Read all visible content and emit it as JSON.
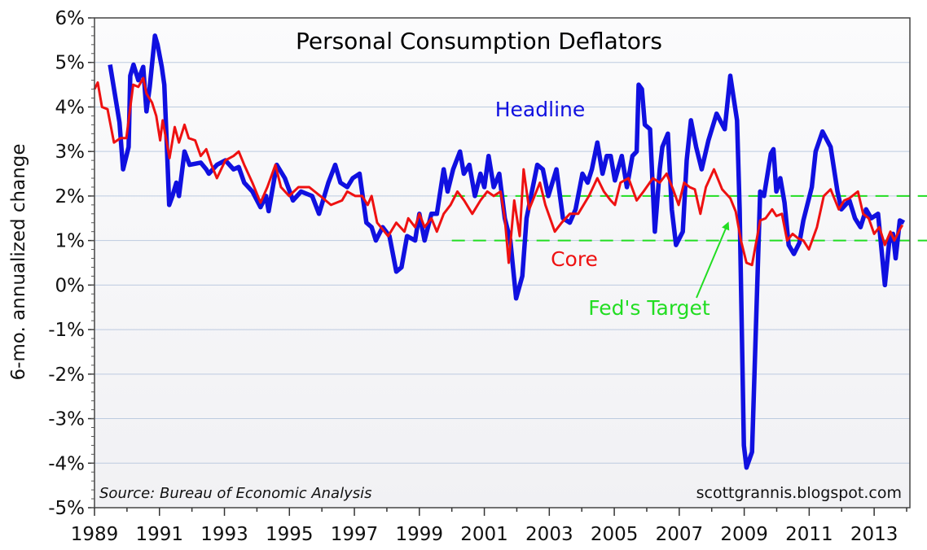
{
  "chart_data": {
    "type": "line",
    "title": "Personal Consumption Deflators",
    "xlabel": "",
    "ylabel": "6-mo. annualized change",
    "xlim": [
      1989,
      2014.1
    ],
    "ylim": [
      -5,
      6
    ],
    "grid": true,
    "x_ticks": [
      "1989",
      "1991",
      "1993",
      "1995",
      "1997",
      "1999",
      "2001",
      "2003",
      "2005",
      "2007",
      "2009",
      "2011",
      "2013"
    ],
    "y_ticks": [
      "6%",
      "5%",
      "4%",
      "3%",
      "2%",
      "1%",
      "0%",
      "-1%",
      "-2%",
      "-3%",
      "-4%",
      "-5%"
    ],
    "source": "Source:  Bureau of Economic Analysis",
    "credit": "scottgrannis.blogspot.com",
    "colors": {
      "headline": "#1010e0",
      "core": "#ee1111",
      "target": "#22dd22",
      "grid": "#bccbe0"
    },
    "target_band": {
      "label": "Fed's Target",
      "low": 1,
      "high": 2,
      "start": 2000.0
    },
    "series": [
      {
        "name": "Headline",
        "points": [
          [
            1989.48,
            4.95
          ],
          [
            1989.77,
            3.65
          ],
          [
            1989.88,
            2.6
          ],
          [
            1990.05,
            3.1
          ],
          [
            1990.1,
            4.7
          ],
          [
            1990.2,
            4.95
          ],
          [
            1990.35,
            4.6
          ],
          [
            1990.5,
            4.9
          ],
          [
            1990.6,
            3.9
          ],
          [
            1990.7,
            4.45
          ],
          [
            1990.86,
            5.6
          ],
          [
            1990.94,
            5.4
          ],
          [
            1991.07,
            4.9
          ],
          [
            1991.15,
            4.5
          ],
          [
            1991.23,
            3.1
          ],
          [
            1991.3,
            1.8
          ],
          [
            1991.4,
            2.0
          ],
          [
            1991.52,
            2.3
          ],
          [
            1991.6,
            2.0
          ],
          [
            1991.77,
            3.0
          ],
          [
            1991.93,
            2.7
          ],
          [
            1992.27,
            2.75
          ],
          [
            1992.44,
            2.6
          ],
          [
            1992.52,
            2.5
          ],
          [
            1992.77,
            2.7
          ],
          [
            1993.03,
            2.8
          ],
          [
            1993.28,
            2.6
          ],
          [
            1993.44,
            2.65
          ],
          [
            1993.61,
            2.3
          ],
          [
            1993.86,
            2.1
          ],
          [
            1994.11,
            1.75
          ],
          [
            1994.28,
            2.0
          ],
          [
            1994.36,
            1.66
          ],
          [
            1994.61,
            2.7
          ],
          [
            1994.86,
            2.4
          ],
          [
            1995.11,
            1.9
          ],
          [
            1995.36,
            2.1
          ],
          [
            1995.7,
            2.0
          ],
          [
            1995.91,
            1.6
          ],
          [
            1996.2,
            2.3
          ],
          [
            1996.41,
            2.7
          ],
          [
            1996.57,
            2.3
          ],
          [
            1996.78,
            2.2
          ],
          [
            1996.95,
            2.4
          ],
          [
            1997.16,
            2.5
          ],
          [
            1997.37,
            1.4
          ],
          [
            1997.53,
            1.3
          ],
          [
            1997.66,
            1.0
          ],
          [
            1997.87,
            1.3
          ],
          [
            1998.08,
            1.1
          ],
          [
            1998.29,
            0.3
          ],
          [
            1998.45,
            0.4
          ],
          [
            1998.62,
            1.1
          ],
          [
            1998.87,
            1.0
          ],
          [
            1999.0,
            1.6
          ],
          [
            1999.16,
            1.0
          ],
          [
            1999.37,
            1.6
          ],
          [
            1999.54,
            1.6
          ],
          [
            1999.75,
            2.6
          ],
          [
            1999.87,
            2.1
          ],
          [
            2000.04,
            2.6
          ],
          [
            2000.25,
            3.0
          ],
          [
            2000.37,
            2.5
          ],
          [
            2000.54,
            2.7
          ],
          [
            2000.71,
            2.0
          ],
          [
            2000.88,
            2.5
          ],
          [
            2001.0,
            2.2
          ],
          [
            2001.13,
            2.9
          ],
          [
            2001.29,
            2.2
          ],
          [
            2001.46,
            2.5
          ],
          [
            2001.63,
            1.5
          ],
          [
            2001.8,
            1.0
          ],
          [
            2001.98,
            -0.3
          ],
          [
            2002.17,
            0.2
          ],
          [
            2002.3,
            1.5
          ],
          [
            2002.63,
            2.7
          ],
          [
            2002.8,
            2.6
          ],
          [
            2002.97,
            2.0
          ],
          [
            2003.22,
            2.6
          ],
          [
            2003.42,
            1.5
          ],
          [
            2003.63,
            1.4
          ],
          [
            2003.81,
            1.7
          ],
          [
            2004.02,
            2.5
          ],
          [
            2004.18,
            2.3
          ],
          [
            2004.31,
            2.6
          ],
          [
            2004.48,
            3.2
          ],
          [
            2004.64,
            2.5
          ],
          [
            2004.77,
            2.9
          ],
          [
            2004.89,
            2.9
          ],
          [
            2005.02,
            2.35
          ],
          [
            2005.23,
            2.9
          ],
          [
            2005.39,
            2.2
          ],
          [
            2005.56,
            2.9
          ],
          [
            2005.69,
            3.0
          ],
          [
            2005.75,
            4.5
          ],
          [
            2005.85,
            4.4
          ],
          [
            2005.94,
            3.6
          ],
          [
            2006.1,
            3.5
          ],
          [
            2006.25,
            1.2
          ],
          [
            2006.4,
            2.6
          ],
          [
            2006.48,
            3.1
          ],
          [
            2006.65,
            3.4
          ],
          [
            2006.77,
            1.7
          ],
          [
            2006.9,
            0.9
          ],
          [
            2007.11,
            1.2
          ],
          [
            2007.23,
            2.8
          ],
          [
            2007.36,
            3.7
          ],
          [
            2007.52,
            3.1
          ],
          [
            2007.69,
            2.6
          ],
          [
            2007.9,
            3.25
          ],
          [
            2008.15,
            3.85
          ],
          [
            2008.4,
            3.5
          ],
          [
            2008.57,
            4.7
          ],
          [
            2008.78,
            3.7
          ],
          [
            2008.86,
            1.7
          ],
          [
            2008.99,
            -3.6
          ],
          [
            2009.07,
            -4.1
          ],
          [
            2009.24,
            -3.75
          ],
          [
            2009.49,
            2.1
          ],
          [
            2009.61,
            2.0
          ],
          [
            2009.82,
            2.95
          ],
          [
            2009.9,
            3.05
          ],
          [
            2009.99,
            2.1
          ],
          [
            2010.11,
            2.4
          ],
          [
            2010.24,
            1.85
          ],
          [
            2010.37,
            0.9
          ],
          [
            2010.53,
            0.7
          ],
          [
            2010.7,
            0.95
          ],
          [
            2010.82,
            1.45
          ],
          [
            2011.08,
            2.2
          ],
          [
            2011.2,
            3.0
          ],
          [
            2011.41,
            3.45
          ],
          [
            2011.66,
            3.1
          ],
          [
            2011.87,
            2.1
          ],
          [
            2011.99,
            1.7
          ],
          [
            2012.24,
            1.9
          ],
          [
            2012.41,
            1.5
          ],
          [
            2012.58,
            1.3
          ],
          [
            2012.75,
            1.7
          ],
          [
            2012.91,
            1.5
          ],
          [
            2013.12,
            1.6
          ],
          [
            2013.2,
            1.0
          ],
          [
            2013.33,
            0.0
          ],
          [
            2013.46,
            0.95
          ],
          [
            2013.58,
            1.15
          ],
          [
            2013.66,
            0.6
          ],
          [
            2013.79,
            1.45
          ],
          [
            2013.92,
            1.4
          ]
        ]
      },
      {
        "name": "Core",
        "points": [
          [
            1989.0,
            4.4
          ],
          [
            1989.1,
            4.55
          ],
          [
            1989.23,
            4.0
          ],
          [
            1989.4,
            3.95
          ],
          [
            1989.6,
            3.2
          ],
          [
            1989.8,
            3.3
          ],
          [
            1989.98,
            3.3
          ],
          [
            1990.19,
            4.5
          ],
          [
            1990.35,
            4.45
          ],
          [
            1990.5,
            4.65
          ],
          [
            1990.6,
            4.3
          ],
          [
            1990.77,
            4.1
          ],
          [
            1990.9,
            3.8
          ],
          [
            1991.02,
            3.25
          ],
          [
            1991.1,
            3.7
          ],
          [
            1991.31,
            2.85
          ],
          [
            1991.47,
            3.55
          ],
          [
            1991.6,
            3.2
          ],
          [
            1991.77,
            3.6
          ],
          [
            1991.9,
            3.3
          ],
          [
            1992.1,
            3.25
          ],
          [
            1992.27,
            2.9
          ],
          [
            1992.44,
            3.05
          ],
          [
            1992.6,
            2.7
          ],
          [
            1992.77,
            2.4
          ],
          [
            1993.03,
            2.8
          ],
          [
            1993.28,
            2.9
          ],
          [
            1993.44,
            3.0
          ],
          [
            1993.61,
            2.7
          ],
          [
            1993.86,
            2.3
          ],
          [
            1994.11,
            1.85
          ],
          [
            1994.32,
            2.2
          ],
          [
            1994.57,
            2.7
          ],
          [
            1994.74,
            2.2
          ],
          [
            1994.99,
            2.0
          ],
          [
            1995.28,
            2.2
          ],
          [
            1995.61,
            2.2
          ],
          [
            1995.95,
            2.0
          ],
          [
            1996.28,
            1.8
          ],
          [
            1996.62,
            1.9
          ],
          [
            1996.78,
            2.1
          ],
          [
            1997.03,
            2.0
          ],
          [
            1997.24,
            2.0
          ],
          [
            1997.41,
            1.8
          ],
          [
            1997.53,
            2.0
          ],
          [
            1997.7,
            1.4
          ],
          [
            1998.04,
            1.1
          ],
          [
            1998.29,
            1.4
          ],
          [
            1998.54,
            1.2
          ],
          [
            1998.66,
            1.5
          ],
          [
            1998.87,
            1.3
          ],
          [
            1999.0,
            1.6
          ],
          [
            1999.16,
            1.3
          ],
          [
            1999.37,
            1.5
          ],
          [
            1999.54,
            1.2
          ],
          [
            1999.75,
            1.6
          ],
          [
            1999.96,
            1.8
          ],
          [
            2000.17,
            2.1
          ],
          [
            2000.38,
            1.9
          ],
          [
            2000.63,
            1.6
          ],
          [
            2000.88,
            1.9
          ],
          [
            2001.09,
            2.1
          ],
          [
            2001.29,
            2.0
          ],
          [
            2001.5,
            2.1
          ],
          [
            2001.63,
            1.5
          ],
          [
            2001.75,
            0.5
          ],
          [
            2001.92,
            1.9
          ],
          [
            2002.09,
            1.1
          ],
          [
            2002.21,
            2.6
          ],
          [
            2002.38,
            1.7
          ],
          [
            2002.71,
            2.3
          ],
          [
            2002.88,
            1.8
          ],
          [
            2003.17,
            1.2
          ],
          [
            2003.38,
            1.4
          ],
          [
            2003.63,
            1.6
          ],
          [
            2003.89,
            1.6
          ],
          [
            2004.22,
            2.0
          ],
          [
            2004.48,
            2.4
          ],
          [
            2004.68,
            2.1
          ],
          [
            2004.89,
            1.9
          ],
          [
            2005.02,
            1.8
          ],
          [
            2005.19,
            2.3
          ],
          [
            2005.44,
            2.4
          ],
          [
            2005.69,
            1.9
          ],
          [
            2005.9,
            2.1
          ],
          [
            2006.19,
            2.4
          ],
          [
            2006.4,
            2.3
          ],
          [
            2006.61,
            2.5
          ],
          [
            2006.81,
            2.15
          ],
          [
            2006.98,
            1.8
          ],
          [
            2007.15,
            2.3
          ],
          [
            2007.32,
            2.2
          ],
          [
            2007.48,
            2.15
          ],
          [
            2007.65,
            1.6
          ],
          [
            2007.82,
            2.2
          ],
          [
            2008.07,
            2.6
          ],
          [
            2008.32,
            2.15
          ],
          [
            2008.57,
            1.95
          ],
          [
            2008.74,
            1.65
          ],
          [
            2008.9,
            1.0
          ],
          [
            2009.07,
            0.5
          ],
          [
            2009.24,
            0.45
          ],
          [
            2009.49,
            1.45
          ],
          [
            2009.66,
            1.5
          ],
          [
            2009.86,
            1.7
          ],
          [
            2009.99,
            1.55
          ],
          [
            2010.16,
            1.6
          ],
          [
            2010.32,
            1.0
          ],
          [
            2010.49,
            1.15
          ],
          [
            2010.66,
            1.05
          ],
          [
            2010.82,
            1.0
          ],
          [
            2010.99,
            0.8
          ],
          [
            2011.24,
            1.3
          ],
          [
            2011.45,
            2.0
          ],
          [
            2011.66,
            2.15
          ],
          [
            2011.91,
            1.7
          ],
          [
            2012.08,
            1.9
          ],
          [
            2012.24,
            1.95
          ],
          [
            2012.5,
            2.1
          ],
          [
            2012.66,
            1.6
          ],
          [
            2012.83,
            1.5
          ],
          [
            2013.0,
            1.15
          ],
          [
            2013.16,
            1.3
          ],
          [
            2013.33,
            0.9
          ],
          [
            2013.5,
            1.2
          ],
          [
            2013.62,
            1.0
          ],
          [
            2013.79,
            1.25
          ],
          [
            2013.87,
            1.35
          ]
        ]
      }
    ]
  }
}
